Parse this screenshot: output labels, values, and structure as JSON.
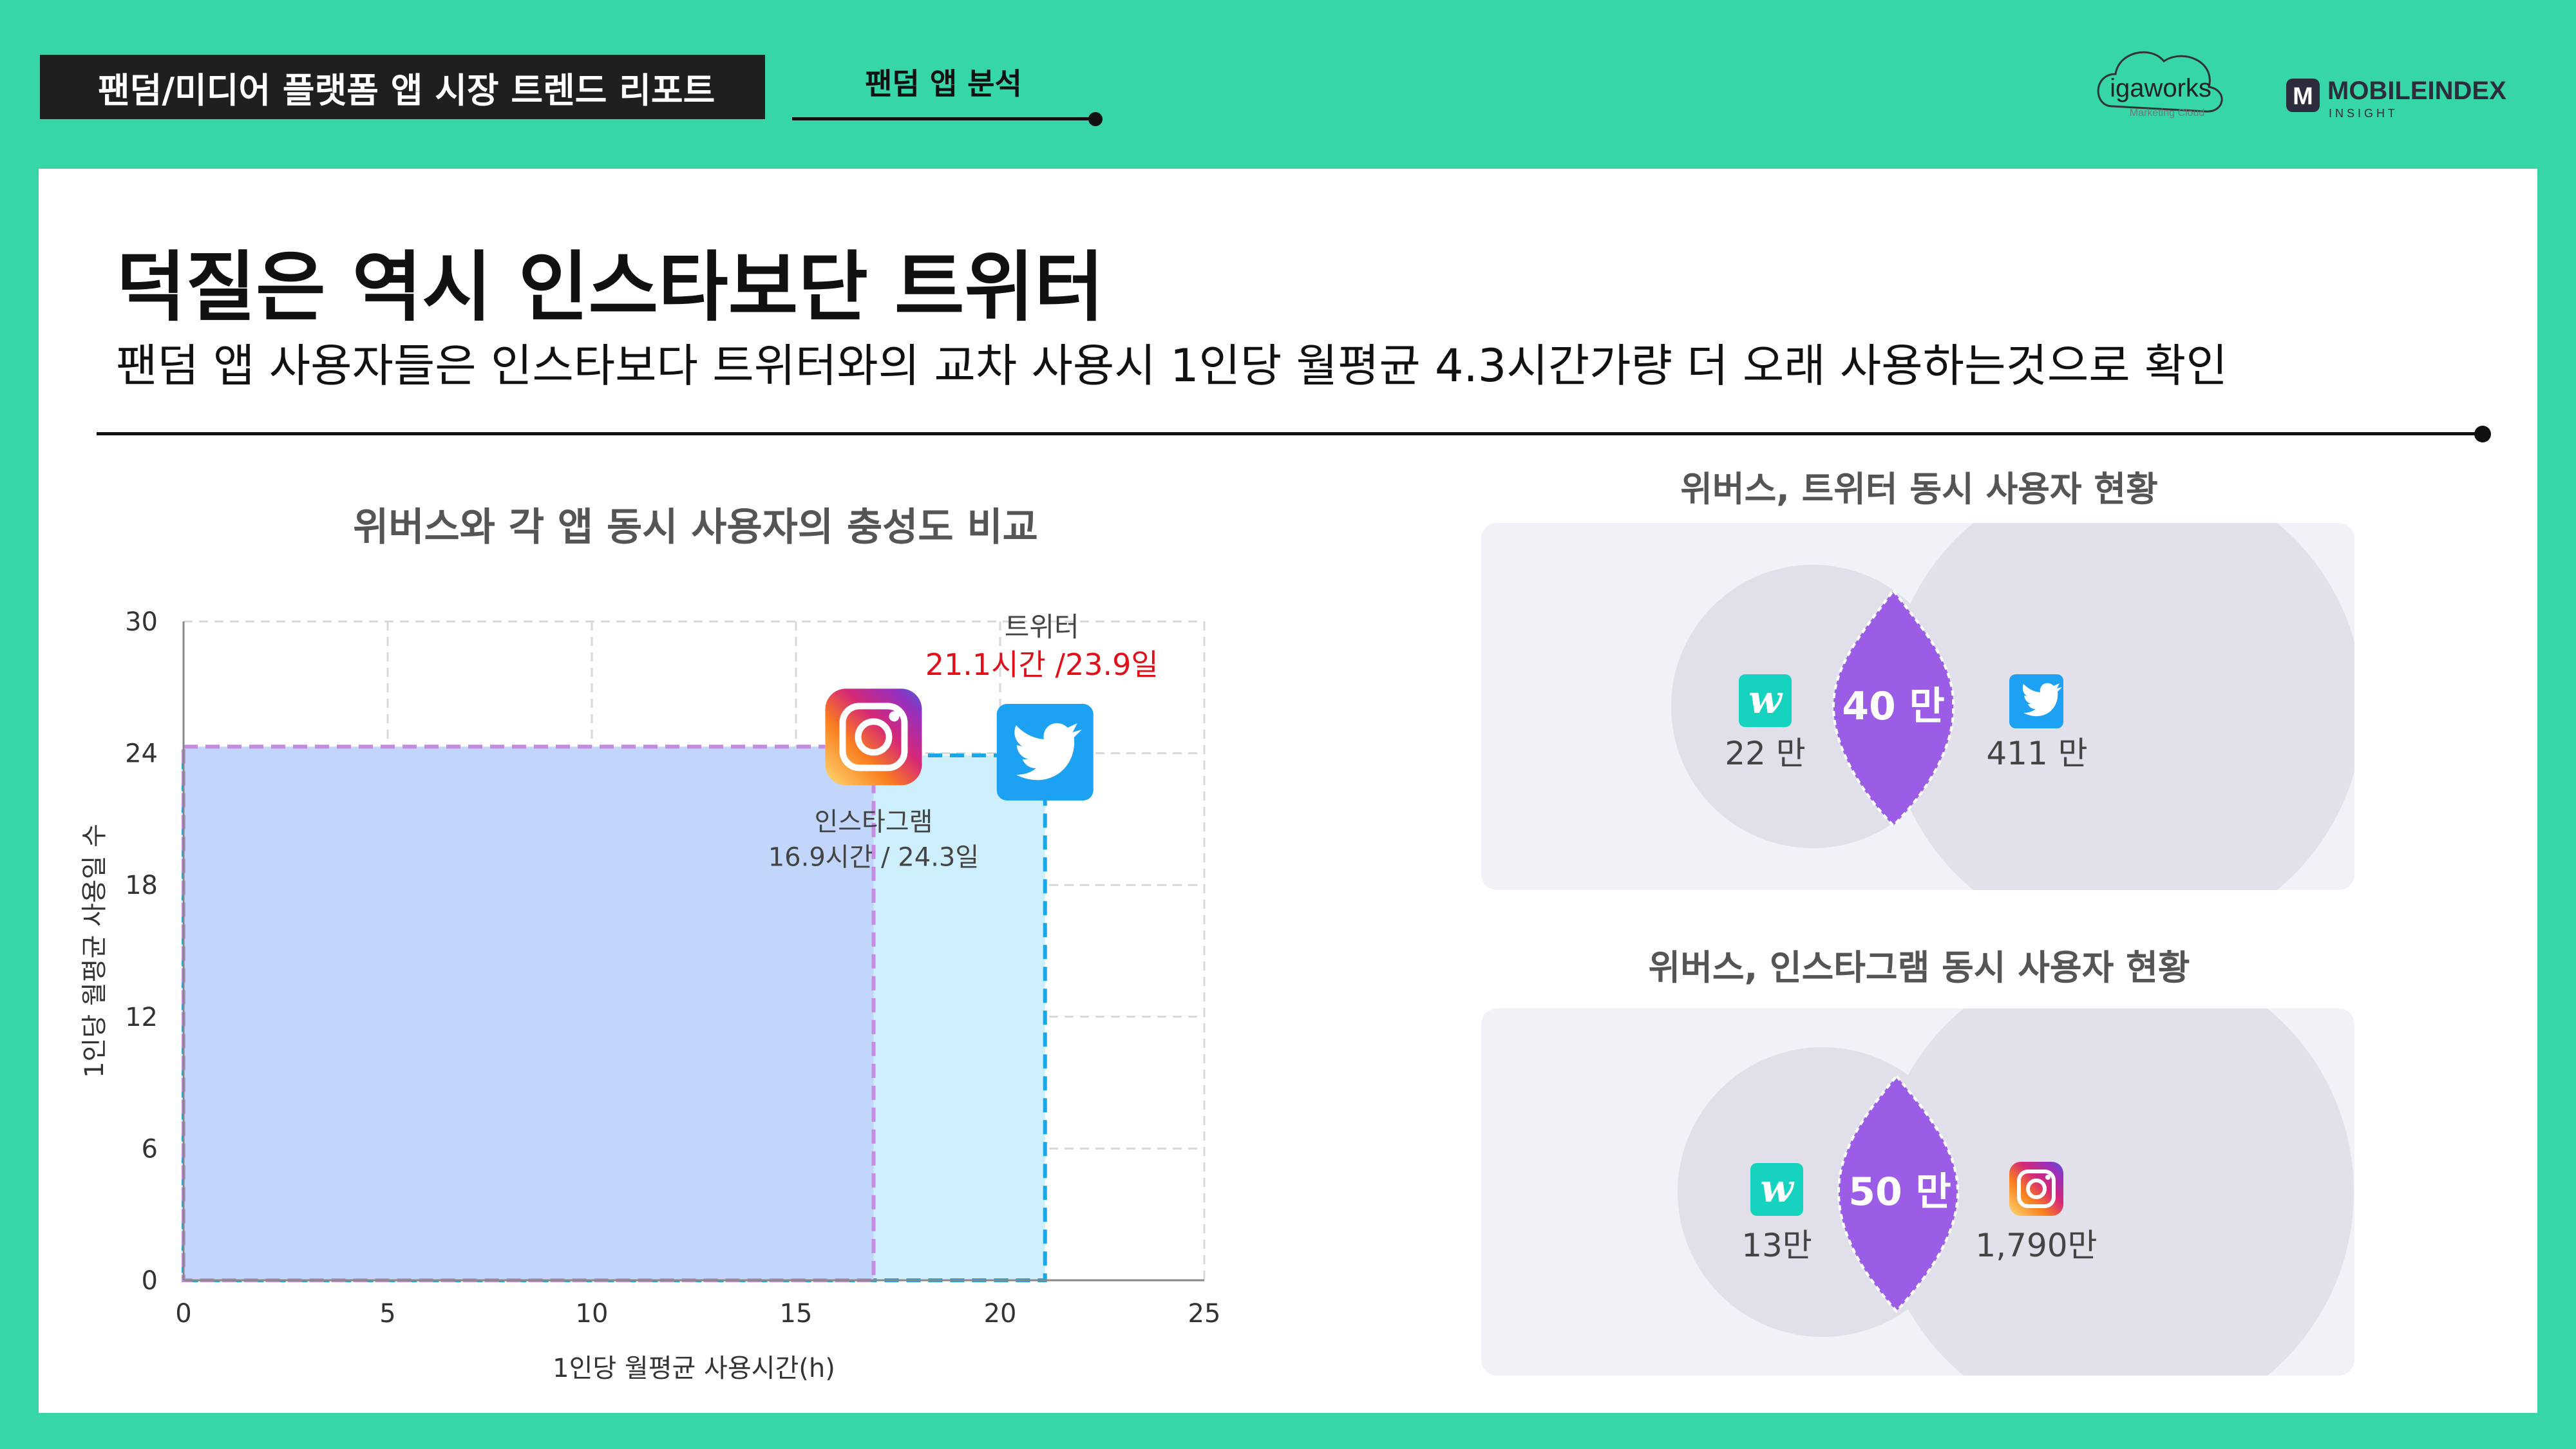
{
  "header": {
    "report_title": "팬덤/미디어 플랫폼 앱 시장 트렌드 리포트",
    "tab_label": "팬덤 앱 분석",
    "logo_igaworks": "igaworks",
    "logo_igaworks_sub": "Marketing Cloud",
    "logo_mobileindex": "MOBILEINDEX",
    "logo_mobileindex_sub": "I N S I G H T"
  },
  "headline": "덕질은 역시 인스타보단 트위터",
  "subline": "팬덤 앱 사용자들은 인스타보다 트위터와의 교차 사용시 1인당 월평균 4.3시간가량 더 오래 사용하는것으로 확인",
  "chart_data": {
    "type": "area",
    "title": "위버스와 각 앱 동시 사용자의 충성도 비교",
    "xlabel": "1인당 월평균 사용시간(h)",
    "ylabel": "1인당 월평균 사용일 수",
    "xlim": [
      0,
      25
    ],
    "ylim": [
      0,
      30
    ],
    "xticks": [
      0,
      5,
      10,
      15,
      20,
      25
    ],
    "yticks": [
      0,
      6,
      12,
      18,
      24,
      30
    ],
    "grid": true,
    "series": [
      {
        "name": "인스타그램",
        "hours": 16.9,
        "days": 24.3,
        "label": "16.9시간 / 24.3일",
        "color": "#c2d6fb",
        "border": "#c58be0"
      },
      {
        "name": "트위터",
        "hours": 21.1,
        "days": 23.9,
        "label": "21.1시간 /23.9일",
        "color": "#cdeefb",
        "border": "#1aa7e6"
      }
    ],
    "label_color_twitter": "#e0101a"
  },
  "venn": [
    {
      "title": "위버스, 트위터 동시 사용자 현황",
      "left_value": "22 만",
      "center_value": "40 만",
      "right_value": "411 만",
      "left_icon": "weverse-icon",
      "right_icon": "twitter-icon"
    },
    {
      "title": "위버스, 인스타그램 동시 사용자 현황",
      "left_value": "13만",
      "center_value": "50 만",
      "right_value": "1,790만",
      "left_icon": "weverse-icon",
      "right_icon": "instagram-icon"
    }
  ],
  "colors": {
    "background": "#36d6a8",
    "venn_center": "#9b5de5",
    "venn_circle": "#e0dfea",
    "twitter": "#1da1f2",
    "weverse": "#16d3c0"
  }
}
